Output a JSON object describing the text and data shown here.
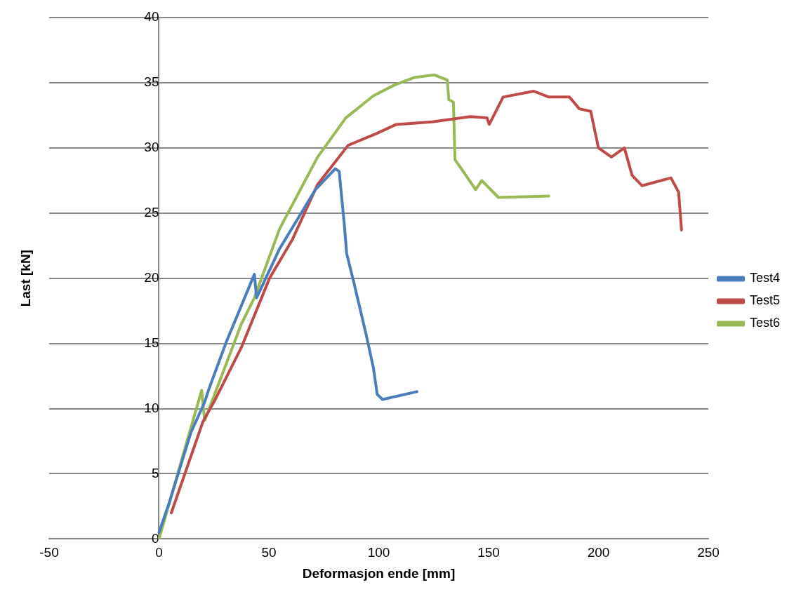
{
  "chart_data": {
    "type": "line",
    "xlabel": "Deformasjon ende [mm]",
    "ylabel": "Last [kN]",
    "xlim": [
      -50,
      250
    ],
    "xticks": [
      -50,
      0,
      50,
      100,
      150,
      200,
      250
    ],
    "ylim": [
      0,
      40
    ],
    "yticks": [
      0,
      5,
      10,
      15,
      20,
      25,
      30,
      35,
      40
    ],
    "grid": "y",
    "legend": "right",
    "marker": "none",
    "line_style": "solid",
    "series": [
      {
        "name": "Test4",
        "color": "#4a7ebb",
        "x": [
          0,
          4.5,
          14.6,
          20.8,
          22.5,
          30.6,
          43.4,
          44.4,
          55,
          71.2,
          80.2,
          82,
          84.4,
          85.4,
          88.5,
          94.1,
          97.6,
          99.3,
          101.7,
          117.4
        ],
        "values": [
          0.5,
          2.7,
          8.2,
          10.5,
          11.4,
          15.1,
          20.3,
          18.5,
          22.3,
          26.8,
          28.4,
          28.2,
          24.0,
          21.9,
          19.8,
          15.8,
          13.1,
          11.1,
          10.7,
          11.3
        ]
      },
      {
        "name": "Test5",
        "color": "#be4b48",
        "x": [
          5.6,
          20,
          25.3,
          37.5,
          50.3,
          60.8,
          72.2,
          86.1,
          99,
          108,
          124.3,
          141.7,
          149.3,
          150.3,
          156.6,
          170.5,
          177.4,
          186.8,
          191.3,
          196.5,
          200,
          205.9,
          211.8,
          215.3,
          219.8,
          233,
          236.5,
          237.8
        ],
        "values": [
          2.0,
          9.0,
          10.6,
          14.7,
          20.0,
          23.0,
          27.2,
          30.2,
          31.1,
          31.8,
          32.0,
          32.4,
          32.3,
          31.8,
          33.9,
          34.35,
          33.9,
          33.9,
          33.0,
          32.8,
          30.0,
          29.3,
          30.0,
          27.9,
          27.1,
          27.7,
          26.6,
          23.7
        ]
      },
      {
        "name": "Test6",
        "color": "#98b954",
        "x": [
          0,
          19.4,
          20.8,
          37.5,
          43.4,
          54.9,
          72.2,
          85,
          97.6,
          106.9,
          116.3,
          125.3,
          131.2,
          131.9,
          134,
          134.7,
          137.2,
          144.1,
          146.9,
          154.5,
          177.4
        ],
        "values": [
          0,
          11.4,
          9.1,
          16.5,
          18.5,
          23.8,
          29.3,
          32.3,
          34.0,
          34.8,
          35.4,
          35.6,
          35.2,
          33.7,
          33.5,
          29.1,
          28.5,
          26.8,
          27.5,
          26.2,
          26.3
        ]
      }
    ]
  }
}
